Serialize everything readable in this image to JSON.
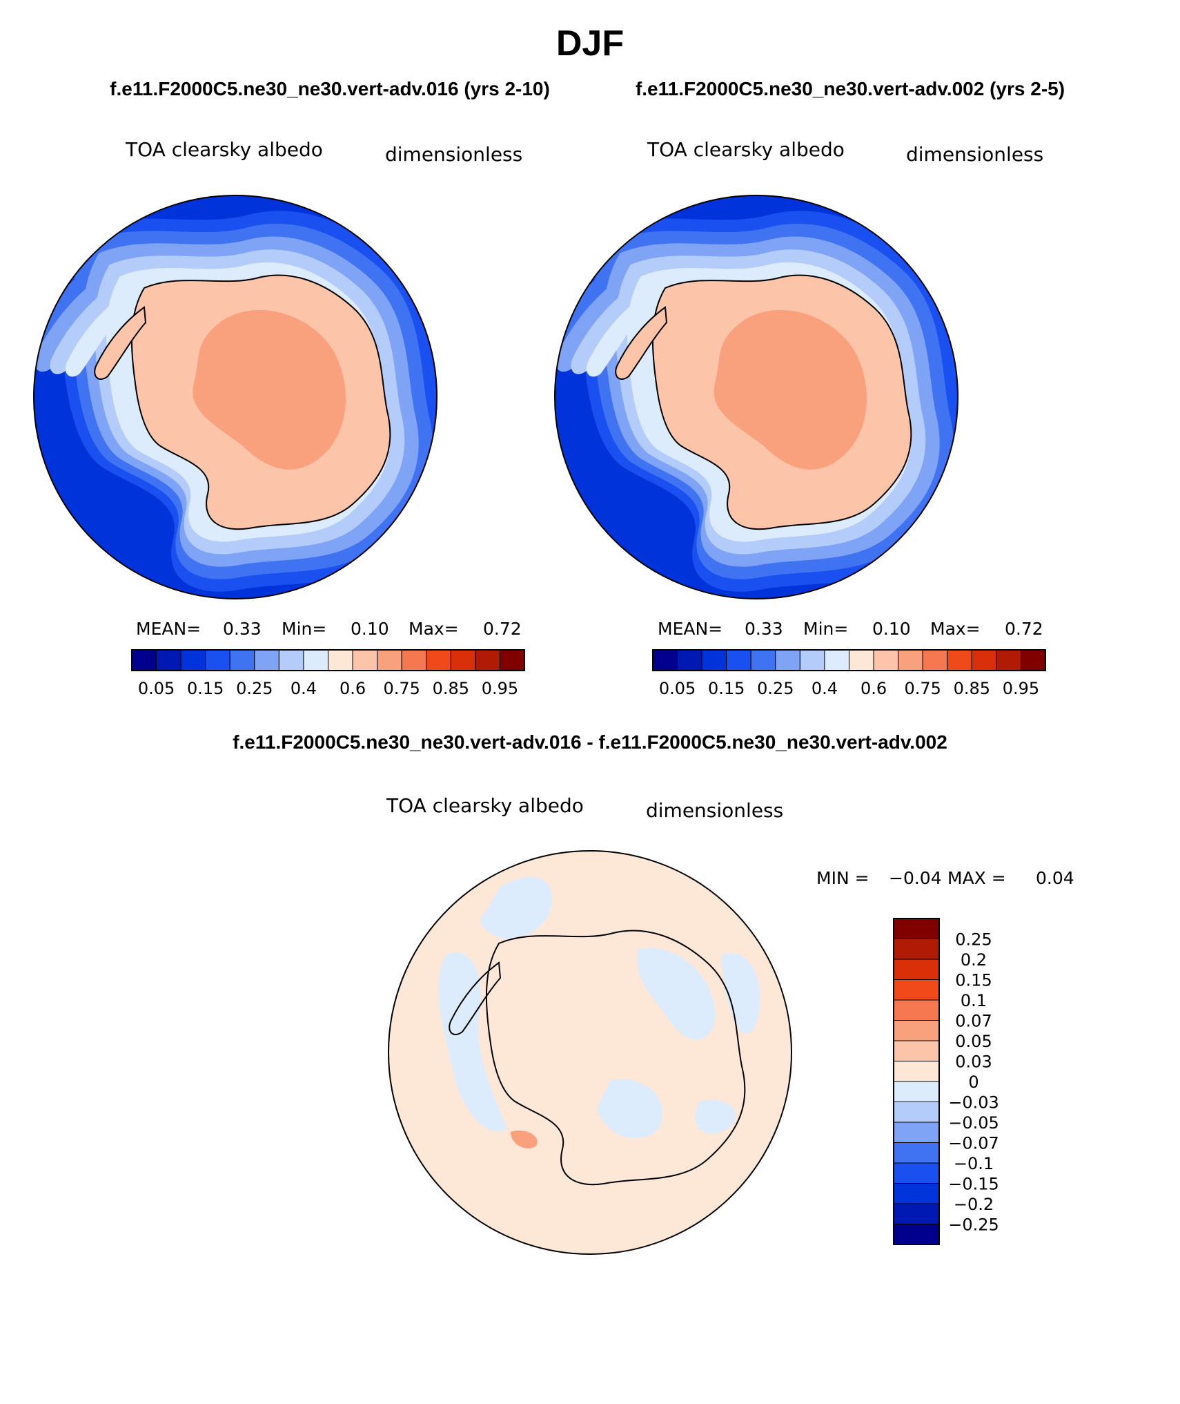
{
  "figure": {
    "season": "DJF",
    "case_titles": [
      "f.e11.F2000C5.ne30_ne30.vert-adv.016 (yrs 2-10)",
      "f.e11.F2000C5.ne30_ne30.vert-adv.002 (yrs 2-5)"
    ],
    "diff_title": "f.e11.F2000C5.ne30_ne30.vert-adv.016 - f.e11.F2000C5.ne30_ne30.vert-adv.002"
  },
  "panels": [
    {
      "variable": "TOA clearsky albedo",
      "units": "dimensionless",
      "mean_label": "MEAN=",
      "mean_value": "0.33",
      "min_label": "Min=",
      "min_value": "0.10",
      "max_label": "Max=",
      "max_value": "0.72"
    },
    {
      "variable": "TOA clearsky albedo",
      "units": "dimensionless",
      "mean_label": "MEAN=",
      "mean_value": "0.33",
      "min_label": "Min=",
      "min_value": "0.10",
      "max_label": "Max=",
      "max_value": "0.72"
    }
  ],
  "diff_panel": {
    "variable": "TOA clearsky albedo",
    "units": "dimensionless",
    "min_label": "MIN =",
    "min_value": "−0.04",
    "max_label": "MAX =",
    "max_value": "0.04"
  },
  "colorbar": {
    "colors": [
      "#00008c",
      "#0019b3",
      "#0033d9",
      "#1a4ff0",
      "#3f73f2",
      "#7fa3f5",
      "#b3ccf9",
      "#dcecfc",
      "#fde8d8",
      "#fcc5aa",
      "#f9a07d",
      "#f57850",
      "#f04a1a",
      "#d9300a",
      "#b01b05",
      "#800000"
    ],
    "tick_labels": [
      "0.05",
      "0.15",
      "0.25",
      "0.4",
      "0.6",
      "0.75",
      "0.85",
      "0.95"
    ]
  },
  "diff_colorbar": {
    "colors": [
      "#00008c",
      "#0019b3",
      "#0033d9",
      "#1a4ff0",
      "#3f73f2",
      "#7fa3f5",
      "#b3ccf9",
      "#dcecfc",
      "#fde8d8",
      "#fcc5aa",
      "#f9a07d",
      "#f57850",
      "#f04a1a",
      "#d9300a",
      "#b01b05",
      "#800000"
    ],
    "labels": [
      "0.25",
      "0.2",
      "0.15",
      "0.1",
      "0.07",
      "0.05",
      "0.03",
      "0",
      "−0.03",
      "−0.05",
      "−0.07",
      "−0.1",
      "−0.15",
      "−0.2",
      "−0.25"
    ]
  },
  "map_colors": {
    "ocean": "#0033d9",
    "ice_edge": [
      "#1a4ff0",
      "#3f73f2",
      "#7fa3f5",
      "#b3ccf9",
      "#dcecfc"
    ],
    "continent": "#fcc5aa",
    "plateau": "#f9a07d",
    "diff_background": "#fde8d8",
    "diff_negative": "#dcecfc",
    "diff_positive": "#f9a07d"
  }
}
